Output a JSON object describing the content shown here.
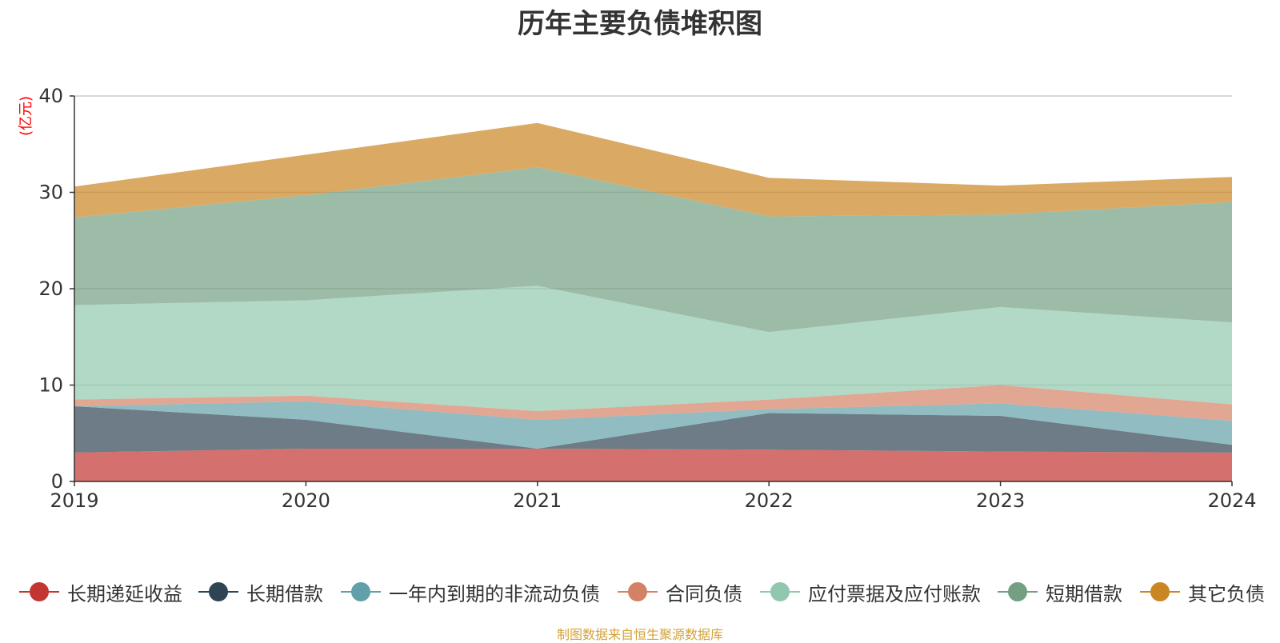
{
  "title": "历年主要负债堆积图",
  "source_note": "制图数据来自恒生聚源数据库",
  "chart_data": {
    "type": "area",
    "stacked": true,
    "title": "历年主要负债堆积图",
    "ylabel": "(亿元)",
    "xlabel": "",
    "categories": [
      "2019",
      "2020",
      "2021",
      "2022",
      "2023",
      "2024"
    ],
    "ylim": [
      0,
      40
    ],
    "yticks": [
      0,
      10,
      20,
      30,
      40
    ],
    "grid": true,
    "legend_position": "bottom",
    "series": [
      {
        "name": "长期递延收益",
        "color": "#c23531",
        "values": [
          3.0,
          3.4,
          3.4,
          3.3,
          3.1,
          3.0
        ]
      },
      {
        "name": "长期借款",
        "color": "#2f4554",
        "values": [
          4.8,
          3.0,
          0.0,
          3.8,
          3.7,
          0.8
        ]
      },
      {
        "name": "一年内到期的非流动负债",
        "color": "#61a0a8",
        "values": [
          0.0,
          1.9,
          3.0,
          0.4,
          1.3,
          2.5
        ]
      },
      {
        "name": "合同负债",
        "color": "#d48265",
        "values": [
          0.7,
          0.6,
          0.9,
          1.0,
          1.9,
          1.7
        ]
      },
      {
        "name": "应付票据及应付账款",
        "color": "#91c7ae",
        "values": [
          9.8,
          9.9,
          13.0,
          7.0,
          8.1,
          8.5
        ]
      },
      {
        "name": "短期借款",
        "color": "#749f83",
        "values": [
          9.1,
          10.9,
          12.3,
          12.0,
          9.6,
          12.5
        ]
      },
      {
        "name": "其它负债",
        "color": "#ca8622",
        "values": [
          3.2,
          4.2,
          4.6,
          4.0,
          3.0,
          2.6
        ]
      }
    ]
  }
}
